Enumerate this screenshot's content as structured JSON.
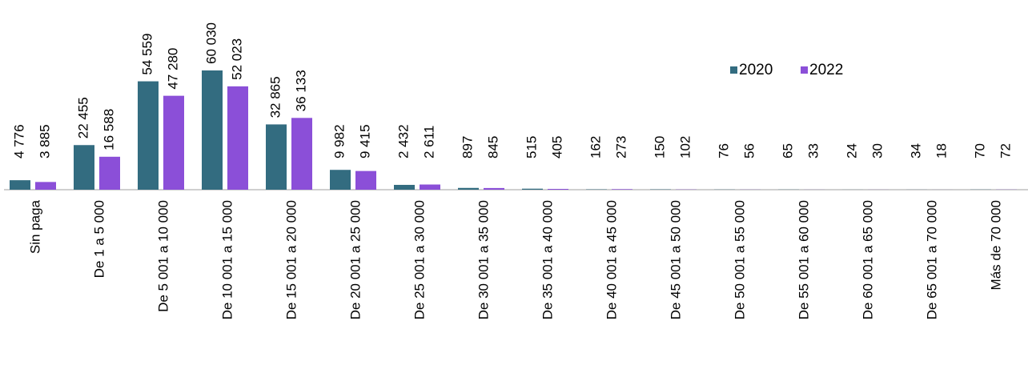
{
  "chart_data": {
    "type": "bar",
    "categories": [
      "Sin paga",
      "De 1 a 5 000",
      "De 5 001 a 10 000",
      "De 10 001 a 15 000",
      "De 15 001 a 20 000",
      "De 20 001 a 25 000",
      "De 25 001 a 30 000",
      "De 30 001 a 35 000",
      "De 35 001 a 40 000",
      "De 40 001 a 45 000",
      "De 45 001 a 50 000",
      "De 50 001 a 55 000",
      "De 55 001 a 60 000",
      "De 60 001 a 65 000",
      "De 65 001 a 70 000",
      "Más de 70 000"
    ],
    "series": [
      {
        "name": "2020",
        "color": "#336c80",
        "values": [
          4776,
          22455,
          54559,
          60030,
          32865,
          9982,
          2432,
          897,
          515,
          162,
          150,
          76,
          65,
          24,
          34,
          70
        ],
        "value_labels": [
          "4 776",
          "22 455",
          "54 559",
          "60 030",
          "32 865",
          "9 982",
          "2 432",
          "897",
          "515",
          "162",
          "150",
          "76",
          "65",
          "24",
          "34",
          "70"
        ]
      },
      {
        "name": "2022",
        "color": "#8b4fd8",
        "values": [
          3885,
          16588,
          47280,
          52023,
          36133,
          9415,
          2611,
          845,
          405,
          273,
          102,
          56,
          33,
          30,
          18,
          72
        ],
        "value_labels": [
          "3 885",
          "16 588",
          "47 280",
          "52 023",
          "36 133",
          "9 415",
          "2 611",
          "845",
          "405",
          "273",
          "102",
          "56",
          "33",
          "30",
          "18",
          "72"
        ]
      }
    ],
    "legend": "upper right"
  }
}
